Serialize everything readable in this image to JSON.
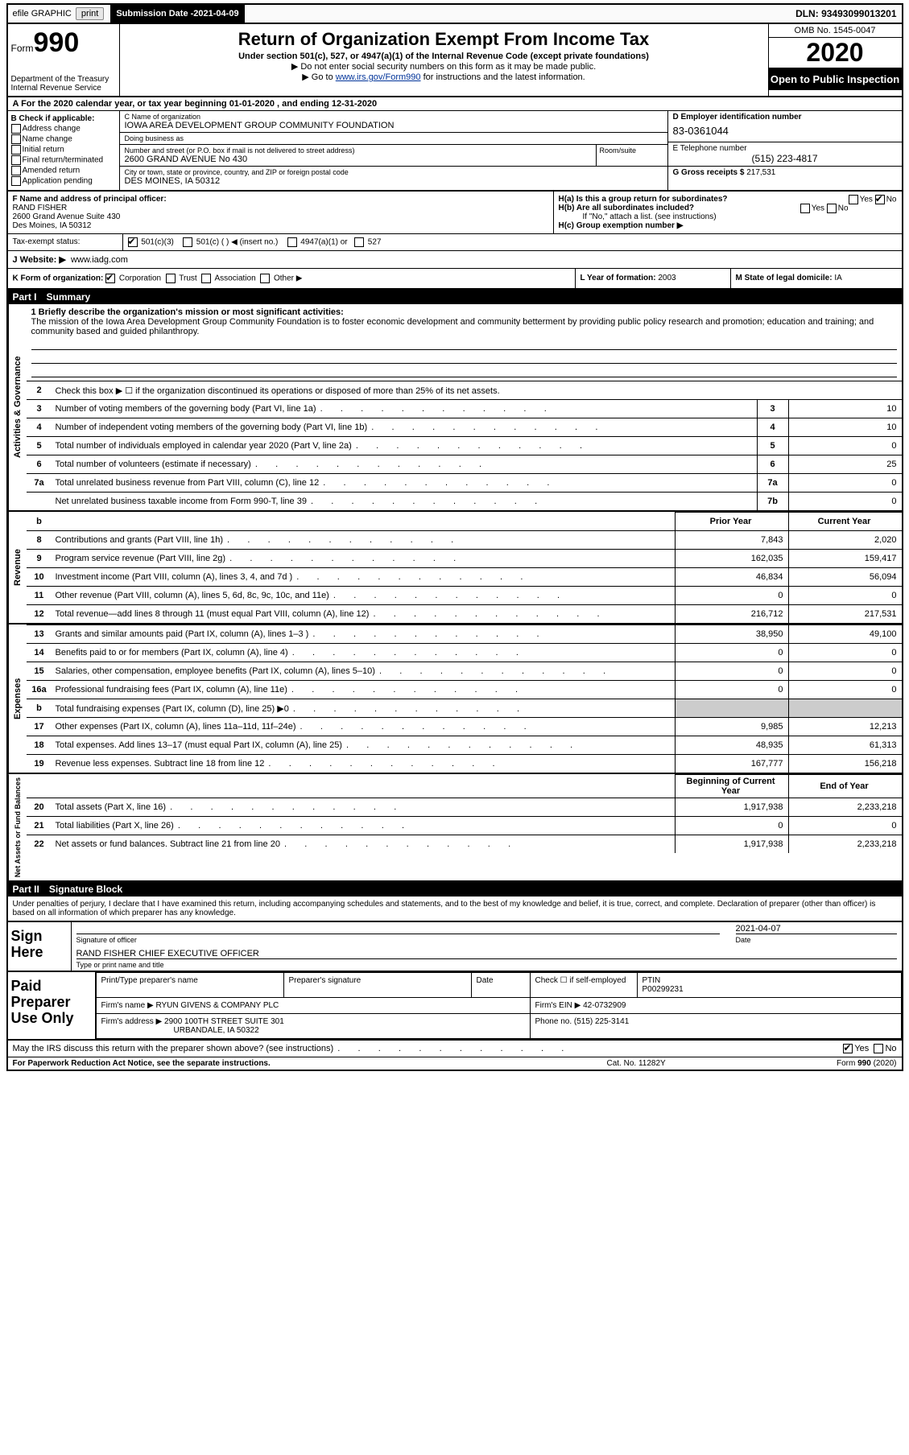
{
  "topbar": {
    "efile": "efile GRAPHIC",
    "print": "print",
    "sub_label": "Submission Date - ",
    "sub_date": "2021-04-09",
    "dln_label": "DLN: ",
    "dln": "93493099013201"
  },
  "header": {
    "form": "Form",
    "form_no": "990",
    "dept": "Department of the Treasury\nInternal Revenue Service",
    "title": "Return of Organization Exempt From Income Tax",
    "sub1": "Under section 501(c), 527, or 4947(a)(1) of the Internal Revenue Code (except private foundations)",
    "sub2": "▶ Do not enter social security numbers on this form as it may be made public.",
    "sub3_pre": "▶ Go to ",
    "sub3_link": "www.irs.gov/Form990",
    "sub3_post": " for instructions and the latest information.",
    "omb": "OMB No. 1545-0047",
    "year": "2020",
    "oti": "Open to Public Inspection"
  },
  "period": {
    "text": "A For the 2020 calendar year, or tax year beginning 01-01-2020    , and ending 12-31-2020"
  },
  "B": {
    "header": "B Check if applicable:",
    "opts": [
      "Address change",
      "Name change",
      "Initial return",
      "Final return/terminated",
      "Amended return",
      "Application pending"
    ]
  },
  "C": {
    "name_lbl": "C Name of organization",
    "name": "IOWA AREA DEVELOPMENT GROUP COMMUNITY FOUNDATION",
    "dba_lbl": "Doing business as",
    "dba": "",
    "addr_lbl": "Number and street (or P.O. box if mail is not delivered to street address)",
    "addr": "2600 GRAND AVENUE No 430",
    "suite_lbl": "Room/suite",
    "city_lbl": "City or town, state or province, country, and ZIP or foreign postal code",
    "city": "DES MOINES, IA  50312"
  },
  "D": {
    "ein_lbl": "D Employer identification number",
    "ein": "83-0361044",
    "tel_lbl": "E Telephone number",
    "tel": "(515) 223-4817",
    "gross_lbl": "G Gross receipts $ ",
    "gross": "217,531"
  },
  "F": {
    "lbl": "F  Name and address of principal officer:",
    "name": "RAND FISHER",
    "addr1": "2600 Grand Avenue Suite 430",
    "addr2": "Des Moines, IA  50312"
  },
  "H": {
    "a_lbl": "H(a)  Is this a group return for subordinates?",
    "a_yes": "Yes",
    "a_no": "No",
    "b_lbl": "H(b)  Are all subordinates included?",
    "b_note": "If \"No,\" attach a list. (see instructions)",
    "c_lbl": "H(c)  Group exemption number ▶"
  },
  "I": {
    "lbl": "Tax-exempt status:",
    "opt1": "501(c)(3)",
    "opt2": "501(c) (  ) ◀ (insert no.)",
    "opt3": "4947(a)(1) or",
    "opt4": "527"
  },
  "J": {
    "lbl": "J  Website: ▶",
    "val": "www.iadg.com"
  },
  "K": {
    "lbl": "K Form of organization:",
    "opts": [
      "Corporation",
      "Trust",
      "Association",
      "Other ▶"
    ],
    "L_lbl": "L Year of formation: ",
    "L_val": "2003",
    "M_lbl": "M State of legal domicile: ",
    "M_val": "IA"
  },
  "partI": {
    "num": "Part I",
    "title": "Summary",
    "line1_lbl": "1  Briefly describe the organization's mission or most significant activities:",
    "mission": "The mission of the Iowa Area Development Group Community Foundation is to foster economic development and community betterment by providing public policy research and promotion; education and training; and community based and guided philanthropy.",
    "line2": "Check this box ▶ ☐  if the organization discontinued its operations or disposed of more than 25% of its net assets.",
    "sections": {
      "gov": "Activities & Governance",
      "rev": "Revenue",
      "exp": "Expenses",
      "net": "Net Assets or Fund Balances"
    },
    "rows_gov": [
      {
        "n": "3",
        "d": "Number of voting members of the governing body (Part VI, line 1a)",
        "box": "3",
        "v": "10"
      },
      {
        "n": "4",
        "d": "Number of independent voting members of the governing body (Part VI, line 1b)",
        "box": "4",
        "v": "10"
      },
      {
        "n": "5",
        "d": "Total number of individuals employed in calendar year 2020 (Part V, line 2a)",
        "box": "5",
        "v": "0"
      },
      {
        "n": "6",
        "d": "Total number of volunteers (estimate if necessary)",
        "box": "6",
        "v": "25"
      },
      {
        "n": "7a",
        "d": "Total unrelated business revenue from Part VIII, column (C), line 12",
        "box": "7a",
        "v": "0"
      },
      {
        "n": "",
        "d": "Net unrelated business taxable income from Form 990-T, line 39",
        "box": "7b",
        "v": "0"
      }
    ],
    "hdr_prior": "Prior Year",
    "hdr_curr": "Current Year",
    "rows_rev": [
      {
        "n": "8",
        "d": "Contributions and grants (Part VIII, line 1h)",
        "p": "7,843",
        "c": "2,020"
      },
      {
        "n": "9",
        "d": "Program service revenue (Part VIII, line 2g)",
        "p": "162,035",
        "c": "159,417"
      },
      {
        "n": "10",
        "d": "Investment income (Part VIII, column (A), lines 3, 4, and 7d )",
        "p": "46,834",
        "c": "56,094"
      },
      {
        "n": "11",
        "d": "Other revenue (Part VIII, column (A), lines 5, 6d, 8c, 9c, 10c, and 11e)",
        "p": "0",
        "c": "0"
      },
      {
        "n": "12",
        "d": "Total revenue—add lines 8 through 11 (must equal Part VIII, column (A), line 12)",
        "p": "216,712",
        "c": "217,531"
      }
    ],
    "rows_exp": [
      {
        "n": "13",
        "d": "Grants and similar amounts paid (Part IX, column (A), lines 1–3 )",
        "p": "38,950",
        "c": "49,100"
      },
      {
        "n": "14",
        "d": "Benefits paid to or for members (Part IX, column (A), line 4)",
        "p": "0",
        "c": "0"
      },
      {
        "n": "15",
        "d": "Salaries, other compensation, employee benefits (Part IX, column (A), lines 5–10)",
        "p": "0",
        "c": "0"
      },
      {
        "n": "16a",
        "d": "Professional fundraising fees (Part IX, column (A), line 11e)",
        "p": "0",
        "c": "0"
      },
      {
        "n": "b",
        "d": "Total fundraising expenses (Part IX, column (D), line 25) ▶0",
        "p": "",
        "c": "",
        "shade": true
      },
      {
        "n": "17",
        "d": "Other expenses (Part IX, column (A), lines 11a–11d, 11f–24e)",
        "p": "9,985",
        "c": "12,213"
      },
      {
        "n": "18",
        "d": "Total expenses. Add lines 13–17 (must equal Part IX, column (A), line 25)",
        "p": "48,935",
        "c": "61,313"
      },
      {
        "n": "19",
        "d": "Revenue less expenses. Subtract line 18 from line 12",
        "p": "167,777",
        "c": "156,218"
      }
    ],
    "hdr_boy": "Beginning of Current Year",
    "hdr_eoy": "End of Year",
    "rows_net": [
      {
        "n": "20",
        "d": "Total assets (Part X, line 16)",
        "p": "1,917,938",
        "c": "2,233,218"
      },
      {
        "n": "21",
        "d": "Total liabilities (Part X, line 26)",
        "p": "0",
        "c": "0"
      },
      {
        "n": "22",
        "d": "Net assets or fund balances. Subtract line 21 from line 20",
        "p": "1,917,938",
        "c": "2,233,218"
      }
    ]
  },
  "partII": {
    "num": "Part II",
    "title": "Signature Block",
    "decl": "Under penalties of perjury, I declare that I have examined this return, including accompanying schedules and statements, and to the best of my knowledge and belief, it is true, correct, and complete. Declaration of preparer (other than officer) is based on all information of which preparer has any knowledge."
  },
  "sign": {
    "hdr": "Sign Here",
    "sig_lbl": "Signature of officer",
    "date_lbl": "Date",
    "date": "2021-04-07",
    "name": "RAND FISHER  CHIEF EXECUTIVE OFFICER",
    "name_lbl": "Type or print name and title"
  },
  "prep": {
    "hdr": "Paid Preparer Use Only",
    "c1": "Print/Type preparer's name",
    "c2": "Preparer's signature",
    "c3": "Date",
    "c4_lbl": "Check ☐ if self-employed",
    "c5_lbl": "PTIN",
    "c5_val": "P00299231",
    "firm_lbl": "Firm's name    ▶ ",
    "firm": "RYUN GIVENS & COMPANY PLC",
    "ein_lbl": "Firm's EIN ▶ ",
    "ein": "42-0732909",
    "addr_lbl": "Firm's address ▶ ",
    "addr1": "2900 100TH STREET SUITE 301",
    "addr2": "URBANDALE, IA  50322",
    "phone_lbl": "Phone no. ",
    "phone": "(515) 225-3141"
  },
  "discuss": {
    "q": "May the IRS discuss this return with the preparer shown above? (see instructions)",
    "yes": "Yes",
    "no": "No"
  },
  "footer": {
    "l": "For Paperwork Reduction Act Notice, see the separate instructions.",
    "m": "Cat. No. 11282Y",
    "r": "Form 990 (2020)"
  }
}
